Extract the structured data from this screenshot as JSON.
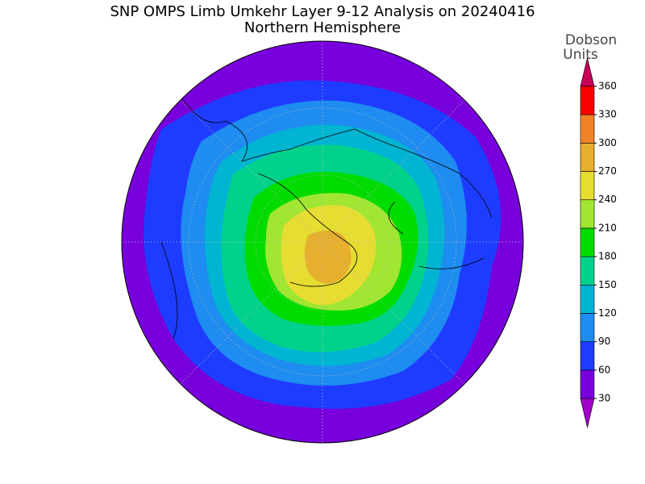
{
  "title": "SNP OMPS Limb Umkehr Layer 9-12 Analysis on 20240416",
  "subtitle": "Northern Hemisphere",
  "colorbar": {
    "label": [
      "Dobson",
      "Units"
    ],
    "levels": [
      30,
      60,
      90,
      120,
      150,
      180,
      210,
      240,
      270,
      300,
      330,
      360
    ],
    "colors": [
      "#a000c8",
      "#7800dc",
      "#1e3cff",
      "#1e8cf0",
      "#00b4d2",
      "#00d28c",
      "#00dc00",
      "#a0e632",
      "#e6dc32",
      "#e6af2d",
      "#f08228",
      "#fa0000",
      "#c8005a"
    ]
  }
}
